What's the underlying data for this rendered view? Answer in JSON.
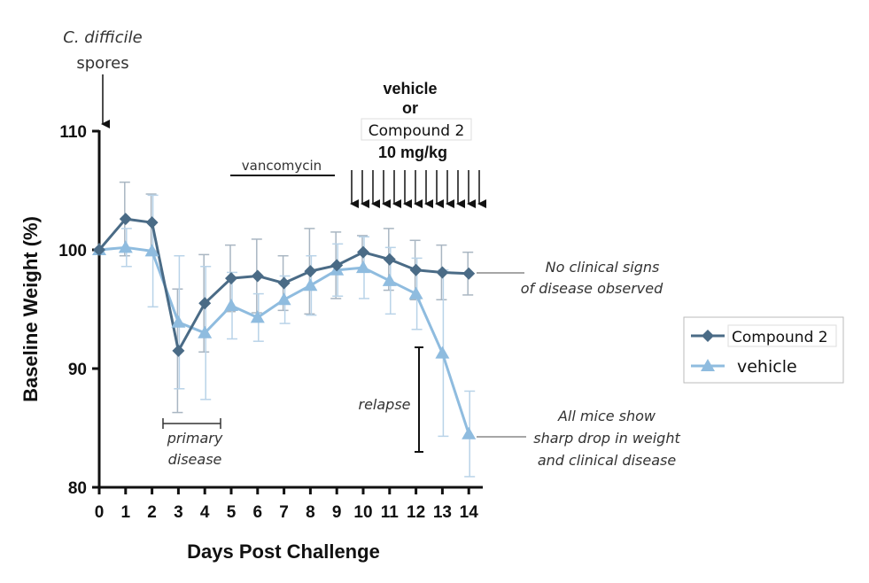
{
  "chart_data": {
    "type": "line",
    "xlabel": "Days Post Challenge",
    "ylabel": "Baseline Weight (%)",
    "x": [
      0,
      1,
      2,
      3,
      4,
      5,
      6,
      7,
      8,
      9,
      10,
      11,
      12,
      13,
      14
    ],
    "xticks": [
      "0",
      "1",
      "2",
      "3",
      "4",
      "5",
      "6",
      "7",
      "8",
      "9",
      "10",
      "11",
      "12",
      "13",
      "14"
    ],
    "xlim": [
      0,
      14
    ],
    "yticks": [
      "80",
      "90",
      "100",
      "110"
    ],
    "ylim": [
      80,
      110
    ],
    "grid": false,
    "legend_position": "right",
    "series": [
      {
        "name": "Compound 2",
        "color": "#4a6b86",
        "marker": "diamond",
        "values": [
          100,
          102.6,
          102.3,
          91.5,
          95.5,
          97.6,
          97.8,
          97.2,
          98.2,
          98.7,
          99.8,
          99.2,
          98.3,
          98.1,
          98.0
        ],
        "error": [
          0,
          3.1,
          2.4,
          5.2,
          4.1,
          2.8,
          3.1,
          2.3,
          3.6,
          2.8,
          1.4,
          2.6,
          2.5,
          2.3,
          1.8
        ]
      },
      {
        "name": "vehicle",
        "color": "#8fbcdf",
        "marker": "triangle",
        "values": [
          100,
          100.2,
          99.9,
          93.9,
          93.0,
          95.3,
          94.3,
          95.8,
          97.0,
          98.3,
          98.5,
          97.4,
          96.3,
          91.3,
          84.5
        ],
        "error": [
          0,
          1.6,
          4.7,
          5.6,
          5.6,
          2.8,
          2.0,
          2.0,
          2.5,
          2.2,
          2.6,
          2.8,
          3.0,
          7.0,
          3.6
        ]
      }
    ],
    "annotations": {
      "spores_line1": "C. difficile",
      "spores_line2": "spores",
      "vancomycin": "vancomycin",
      "treatment_line1": "vehicle",
      "treatment_line2": "or",
      "treatment_line3": "Compound 2",
      "treatment_line4": "10 mg/kg",
      "no_signs_line1": "No clinical signs",
      "no_signs_line2": "of disease observed",
      "primary_line1": "primary",
      "primary_line2": "disease",
      "relapse": "relapse",
      "drop_line1": "All mice show",
      "drop_line2": "sharp drop in weight",
      "drop_line3": "and clinical disease"
    }
  }
}
